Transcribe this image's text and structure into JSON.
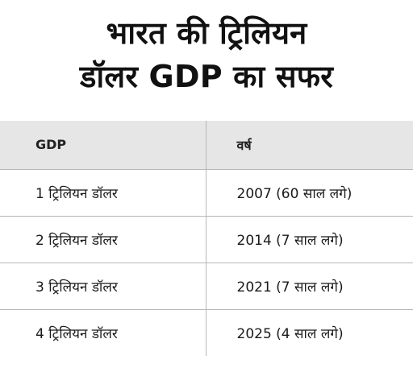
{
  "title": {
    "line1": "भारत की ट्रिलियन",
    "line2": "डॉलर GDP का सफर"
  },
  "table": {
    "headers": [
      "GDP",
      "वर्ष"
    ],
    "rows": [
      [
        "1 ट्रिलियन डॉलर",
        "2007 (60 साल लगे)"
      ],
      [
        "2 ट्रिलियन डॉलर",
        "2014  (7 साल लगे)"
      ],
      [
        "3 ट्रिलियन डॉलर",
        "2021 (7 साल लगे)"
      ],
      [
        "4 ट्रिलियन डॉलर",
        "2025  (4 साल लगे)"
      ]
    ]
  },
  "colors": {
    "header_bg": "#e6e6e6",
    "divider": "#b7b7b7",
    "text": "#111111"
  }
}
